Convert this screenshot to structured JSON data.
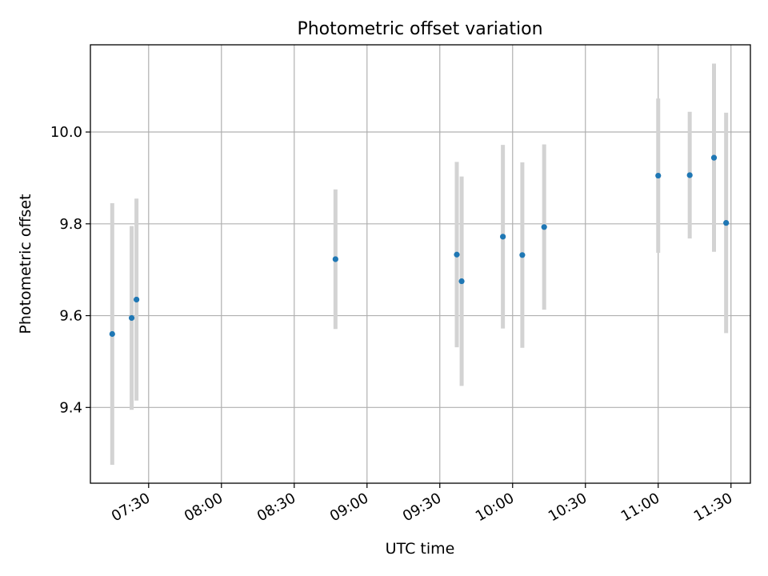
{
  "chart_data": {
    "type": "scatter",
    "title": "Photometric offset variation",
    "xlabel": "UTC time",
    "ylabel": "Photometric offset",
    "x_ticks": [
      "07:30",
      "08:00",
      "08:30",
      "09:00",
      "09:30",
      "10:00",
      "10:30",
      "11:00",
      "11:30"
    ],
    "y_ticks": [
      "9.4",
      "9.6",
      "9.8",
      "10.0"
    ],
    "xlim": [
      "07:06",
      "11:38"
    ],
    "ylim": [
      9.235,
      10.19
    ],
    "grid": true,
    "colors": {
      "point": "#1f77b4",
      "errorbar": "#d3d3d3",
      "grid": "#b0b0b0"
    },
    "series": [
      {
        "points": [
          {
            "x": "07:15",
            "y": 9.56,
            "err": 0.285
          },
          {
            "x": "07:23",
            "y": 9.595,
            "err": 0.2
          },
          {
            "x": "07:25",
            "y": 9.635,
            "err": 0.22
          },
          {
            "x": "08:47",
            "y": 9.723,
            "err": 0.152
          },
          {
            "x": "09:37",
            "y": 9.733,
            "err": 0.202
          },
          {
            "x": "09:39",
            "y": 9.675,
            "err": 0.228
          },
          {
            "x": "09:56",
            "y": 9.772,
            "err": 0.2
          },
          {
            "x": "10:04",
            "y": 9.732,
            "err": 0.202
          },
          {
            "x": "10:13",
            "y": 9.793,
            "err": 0.18
          },
          {
            "x": "11:00",
            "y": 9.905,
            "err": 0.168
          },
          {
            "x": "11:13",
            "y": 9.906,
            "err": 0.138
          },
          {
            "x": "11:23",
            "y": 9.944,
            "err": 0.205
          },
          {
            "x": "11:28",
            "y": 9.802,
            "err": 0.24
          }
        ]
      }
    ]
  }
}
